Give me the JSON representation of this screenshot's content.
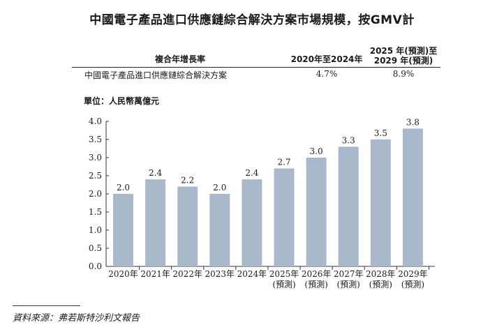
{
  "title": "中國電子產品進口供應鏈綜合解決方案市場規模，按GMV計",
  "cagr_table": {
    "header_label": "複合年增長率",
    "col1_header": "2020年至2024年",
    "col2_header_line1": "2025 年(預測)至",
    "col2_header_line2": "2029 年(預測)",
    "row_label": "中國電子產品進口供應鏈綜合解決方案",
    "row_col1": "4.7%",
    "row_col2": "8.9%"
  },
  "unit_label": "單位：人民幣萬億元",
  "source": "資料來源：弗若斯特沙利文報告",
  "colors": {
    "bar": "#a9b9cb",
    "axis": "#333333",
    "text": "#1a1a1a"
  },
  "chart_data": {
    "type": "bar",
    "title": "中國電子產品進口供應鏈綜合解決方案市場規模，按GMV計",
    "ylabel": "單位：人民幣萬億元",
    "xlabel": "",
    "ylim": [
      0,
      4
    ],
    "yticks": [
      "0.0",
      "0.5",
      "1.0",
      "1.5",
      "2.0",
      "2.5",
      "3.0",
      "3.5",
      "4.0"
    ],
    "grid": false,
    "categories": [
      {
        "line1": "2020年",
        "line2": ""
      },
      {
        "line1": "2021年",
        "line2": ""
      },
      {
        "line1": "2022年",
        "line2": ""
      },
      {
        "line1": "2023年",
        "line2": ""
      },
      {
        "line1": "2024年",
        "line2": ""
      },
      {
        "line1": "2025年",
        "line2": "(預測)"
      },
      {
        "line1": "2026年",
        "line2": "(預測)"
      },
      {
        "line1": "2027年",
        "line2": "(預測)"
      },
      {
        "line1": "2028年",
        "line2": "(預測)"
      },
      {
        "line1": "2029年",
        "line2": "(預測)"
      }
    ],
    "values": [
      2.0,
      2.4,
      2.2,
      2.0,
      2.4,
      2.7,
      3.0,
      3.3,
      3.5,
      3.8
    ],
    "value_labels": [
      "2.0",
      "2.4",
      "2.2",
      "2.0",
      "2.4",
      "2.7",
      "3.0",
      "3.3",
      "3.5",
      "3.8"
    ]
  }
}
